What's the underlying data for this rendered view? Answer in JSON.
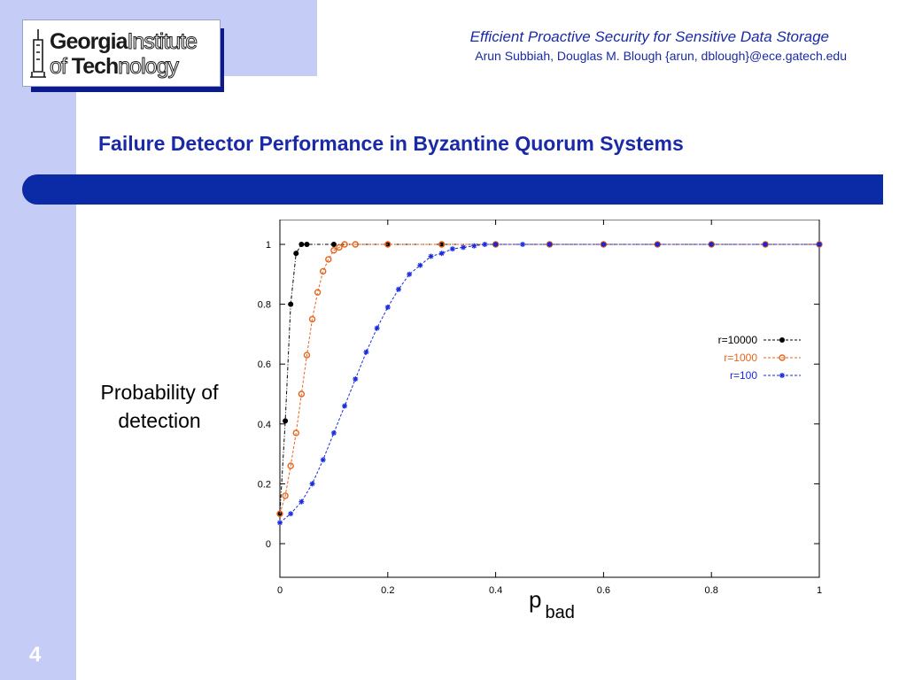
{
  "header": {
    "logo_line1_bold": "Georgia",
    "logo_line1_outline": "Institute",
    "logo_line2_outline": "of ",
    "logo_line2_bold": "Tech",
    "logo_line2_outline_end": "nology",
    "paper_title": "Efficient Proactive Security for Sensitive Data Storage",
    "authors": "Arun Subbiah, Douglas M. Blough {arun, dblough}@ece.gatech.edu"
  },
  "slide": {
    "title": "Failure Detector Performance in Byzantine Quorum Systems",
    "ylabel": "Probability of detection",
    "xlabel_main": "p",
    "xlabel_sub": "bad",
    "page_number": "4"
  },
  "colors": {
    "sidebar": "#c5cdf7",
    "accent": "#0b2ba6",
    "title_text": "#1a2aa6",
    "series_r10000": "#000000",
    "series_r1000": "#e8641e",
    "series_r100": "#1a2ae0"
  },
  "chart_data": {
    "type": "line",
    "title": "",
    "xlabel": "",
    "ylabel": "",
    "xlim": [
      0,
      1
    ],
    "ylim": [
      0,
      1
    ],
    "x_ticks": [
      "0",
      "0.2",
      "0.4",
      "0.6",
      "0.8",
      "1"
    ],
    "y_ticks": [
      "0",
      "0.2",
      "0.4",
      "0.6",
      "0.8",
      "1"
    ],
    "legend_position": "right",
    "series": [
      {
        "name": "r=10000",
        "marker": "circle",
        "x": [
          0,
          0.01,
          0.02,
          0.03,
          0.04,
          0.05,
          0.1,
          0.2,
          0.3,
          0.4,
          0.5,
          0.6,
          0.7,
          0.8,
          0.9,
          1.0
        ],
        "y": [
          0.1,
          0.41,
          0.8,
          0.97,
          1.0,
          1.0,
          1.0,
          1.0,
          1.0,
          1.0,
          1.0,
          1.0,
          1.0,
          1.0,
          1.0,
          1.0
        ]
      },
      {
        "name": "r=1000",
        "marker": "circle-open",
        "x": [
          0,
          0.01,
          0.02,
          0.03,
          0.04,
          0.05,
          0.06,
          0.07,
          0.08,
          0.09,
          0.1,
          0.11,
          0.12,
          0.14,
          0.2,
          0.3,
          0.4,
          0.5,
          0.6,
          0.7,
          0.8,
          0.9,
          1.0
        ],
        "y": [
          0.1,
          0.16,
          0.26,
          0.37,
          0.5,
          0.63,
          0.75,
          0.84,
          0.91,
          0.95,
          0.98,
          0.99,
          1.0,
          1.0,
          1.0,
          1.0,
          1.0,
          1.0,
          1.0,
          1.0,
          1.0,
          1.0,
          1.0
        ]
      },
      {
        "name": "r=100",
        "marker": "asterisk",
        "x": [
          0,
          0.02,
          0.04,
          0.06,
          0.08,
          0.1,
          0.12,
          0.14,
          0.16,
          0.18,
          0.2,
          0.22,
          0.24,
          0.26,
          0.28,
          0.3,
          0.32,
          0.34,
          0.36,
          0.38,
          0.4,
          0.45,
          0.5,
          0.6,
          0.7,
          0.8,
          0.9,
          1.0
        ],
        "y": [
          0.07,
          0.1,
          0.14,
          0.2,
          0.28,
          0.37,
          0.46,
          0.55,
          0.64,
          0.72,
          0.79,
          0.85,
          0.9,
          0.93,
          0.96,
          0.97,
          0.985,
          0.99,
          0.995,
          1.0,
          1.0,
          1.0,
          1.0,
          1.0,
          1.0,
          1.0,
          1.0,
          1.0
        ]
      }
    ]
  }
}
